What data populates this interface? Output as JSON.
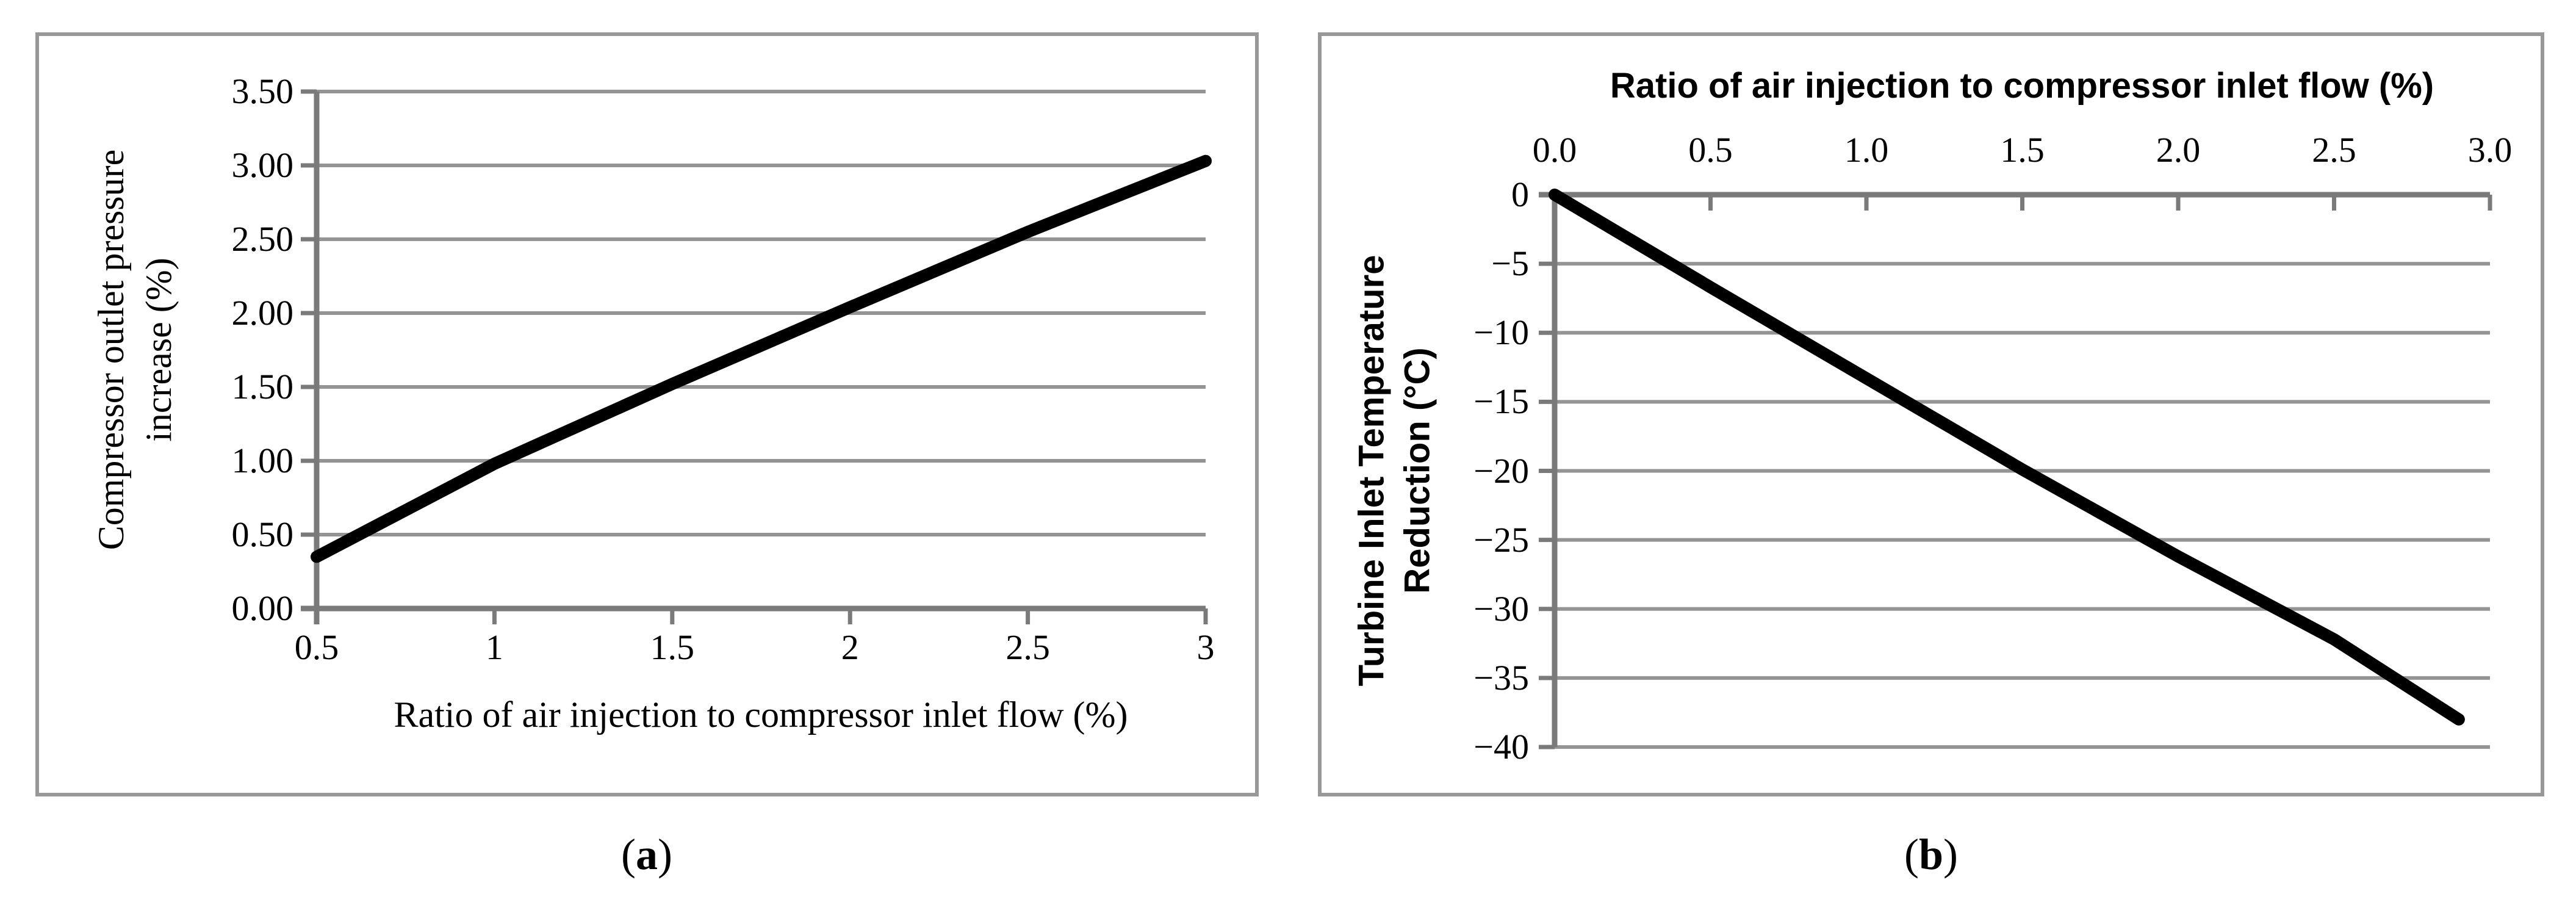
{
  "figure": {
    "background": "#ffffff",
    "grid_color": "#949494",
    "axis_color": "#7a7a7a",
    "border_color": "#989898",
    "line_color": "#000000",
    "captions": [
      {
        "open": "(",
        "letter": "a",
        "close": ")"
      },
      {
        "open": "(",
        "letter": "b",
        "close": ")"
      }
    ]
  },
  "chart_data": [
    {
      "type": "line",
      "title": "",
      "xlabel": "Ratio of air injection to compressor inlet flow (%)",
      "xlabel_position": "bottom",
      "ylabel_lines": [
        "Compressor outlet pressure",
        "increase (%)"
      ],
      "xlim": [
        0.5,
        3
      ],
      "ylim": [
        0,
        3.5
      ],
      "grid": "horizontal",
      "legend": "none",
      "x_ticks": [
        {
          "v": 0.5,
          "label": "0.5"
        },
        {
          "v": 1,
          "label": "1"
        },
        {
          "v": 1.5,
          "label": "1.5"
        },
        {
          "v": 2,
          "label": "2"
        },
        {
          "v": 2.5,
          "label": "2.5"
        },
        {
          "v": 3,
          "label": "3"
        }
      ],
      "y_ticks": [
        {
          "v": 0,
          "label": "0.00"
        },
        {
          "v": 0.5,
          "label": "0.50"
        },
        {
          "v": 1,
          "label": "1.00"
        },
        {
          "v": 1.5,
          "label": "1.50"
        },
        {
          "v": 2,
          "label": "2.00"
        },
        {
          "v": 2.5,
          "label": "2.50"
        },
        {
          "v": 3,
          "label": "3.00"
        },
        {
          "v": 3.5,
          "label": "3.50"
        }
      ],
      "series": [
        {
          "name": "compressor-outlet-pressure-increase",
          "points": [
            [
              0.5,
              0.35
            ],
            [
              1,
              0.98
            ],
            [
              1.5,
              1.52
            ],
            [
              2,
              2.04
            ],
            [
              2.5,
              2.55
            ],
            [
              3,
              3.03
            ]
          ]
        }
      ]
    },
    {
      "type": "line",
      "title": "",
      "xlabel": "Ratio of air injection to compressor inlet flow (%)",
      "xlabel_position": "top",
      "ylabel_lines": [
        "Turbine Inlet Temperature",
        "Reduction (°C)"
      ],
      "xlim": [
        0,
        3
      ],
      "ylim": [
        -40,
        0
      ],
      "grid": "horizontal",
      "legend": "none",
      "x_ticks": [
        {
          "v": 0,
          "label": "0.0"
        },
        {
          "v": 0.5,
          "label": "0.5"
        },
        {
          "v": 1,
          "label": "1.0"
        },
        {
          "v": 1.5,
          "label": "1.5"
        },
        {
          "v": 2,
          "label": "2.0"
        },
        {
          "v": 2.5,
          "label": "2.5"
        },
        {
          "v": 3,
          "label": "3.0"
        }
      ],
      "y_ticks": [
        {
          "v": 0,
          "label": "0"
        },
        {
          "v": -5,
          "label": "−5"
        },
        {
          "v": -10,
          "label": "−10"
        },
        {
          "v": -15,
          "label": "−15"
        },
        {
          "v": -20,
          "label": "−20"
        },
        {
          "v": -25,
          "label": "−25"
        },
        {
          "v": -30,
          "label": "−30"
        },
        {
          "v": -35,
          "label": "−35"
        },
        {
          "v": -40,
          "label": "−40"
        }
      ],
      "series": [
        {
          "name": "turbine-inlet-temperature-reduction",
          "points": [
            [
              0,
              0
            ],
            [
              0.5,
              -6.7
            ],
            [
              1,
              -13.3
            ],
            [
              1.5,
              -19.9
            ],
            [
              2,
              -26.2
            ],
            [
              2.5,
              -32.2
            ],
            [
              2.9,
              -38
            ]
          ]
        }
      ]
    }
  ]
}
